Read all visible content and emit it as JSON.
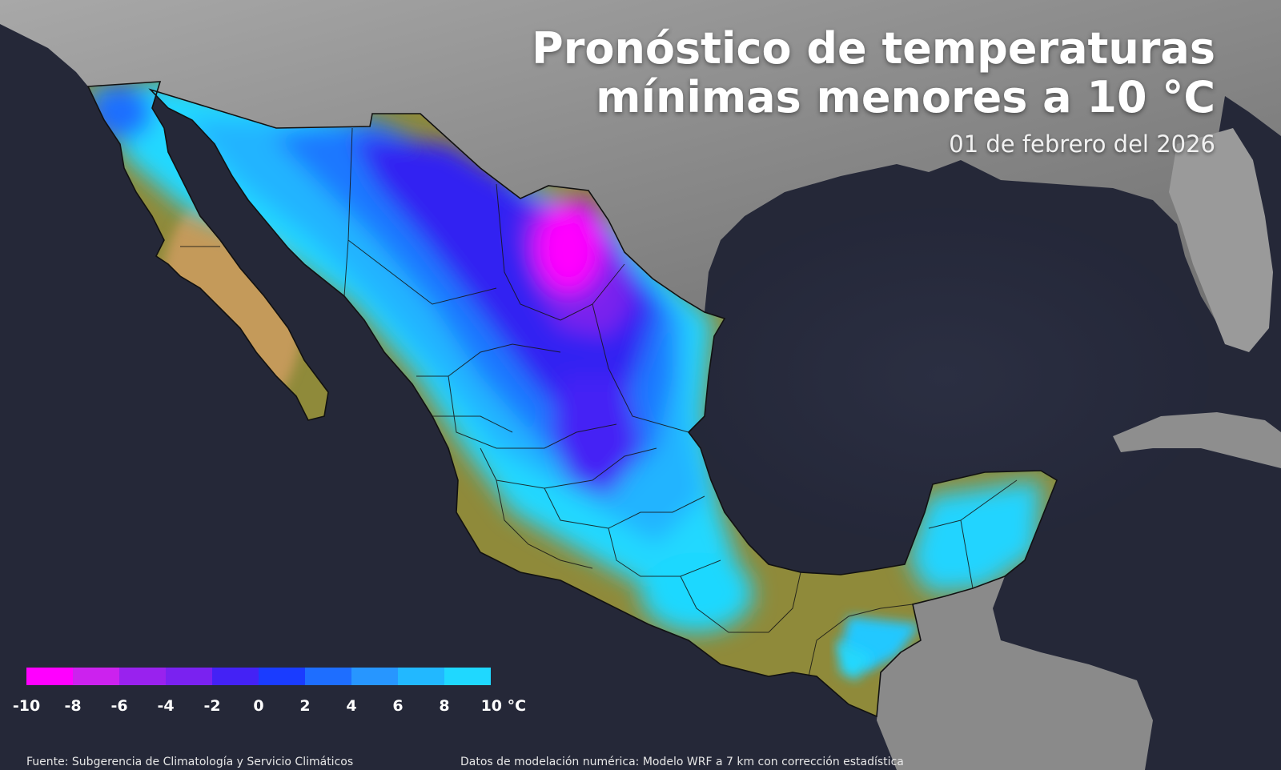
{
  "title_line1": "Pronóstico de temperaturas",
  "title_line2": "mínimas menores a 10 °C",
  "date": "01 de febrero del 2026",
  "legend": {
    "labels": [
      "-10",
      "-8",
      "-6",
      "-4",
      "-2",
      "0",
      "2",
      "4",
      "6",
      "8",
      "10 °C"
    ],
    "colors": [
      "#ff00ff",
      "#cc22ee",
      "#9922ee",
      "#7a22f0",
      "#4422f5",
      "#1a3cff",
      "#1e6eff",
      "#2796ff",
      "#22b8ff",
      "#1fd8ff",
      "#22f0ef"
    ]
  },
  "footer": {
    "source": "Fuente: Subgerencia de Climatología y Servicio Climáticos",
    "model": "Datos de modelación numérica: Modelo WRF a 7 km con corrección estadística"
  },
  "colors": {
    "ocean": "#262a3c",
    "land_background": "#8c8c8c",
    "above_threshold_land": "#8f8a3a",
    "arid_land": "#c49a5a",
    "accent_text": "#ffffff"
  }
}
